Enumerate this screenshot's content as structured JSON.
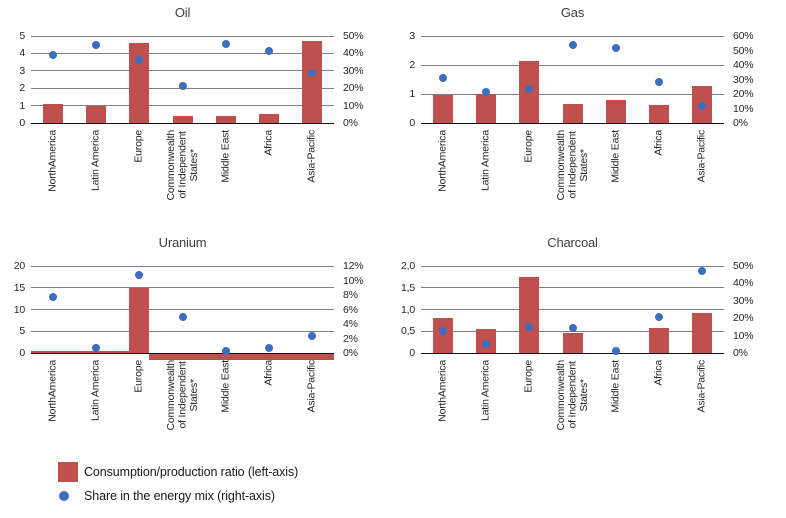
{
  "colors": {
    "bar": "#C0504D",
    "dot": "#3D6EBE",
    "grid": "#7f7f7f",
    "axis": "#141414",
    "text": "#262626"
  },
  "legend": {
    "items": [
      {
        "label": "Consumption/production ratio (left-axis)",
        "marker": "square"
      },
      {
        "label": "Share in the energy mix (right-axis)",
        "marker": "dot"
      }
    ]
  },
  "chart_data": {
    "type": "bar",
    "note": "Four combo charts: red bars = consumption/production ratio on left axis, blue dots = share in energy mix on right axis",
    "categories": [
      "NorthAmerica",
      "Latin America",
      "Europe",
      "Commonwealth\nof Independent\nStates*",
      "Middle East",
      "Africa",
      "Asia-Pacific"
    ],
    "charts": [
      {
        "title": "Oil",
        "left_ticks": [
          "5",
          "4",
          "3",
          "2",
          "1",
          "0"
        ],
        "left_max": 5,
        "right_ticks": [
          "50%",
          "40%",
          "30%",
          "20%",
          "10%",
          "0%"
        ],
        "right_max": 50,
        "bars": [
          1.1,
          1.0,
          4.6,
          0.42,
          0.38,
          0.52,
          4.7
        ],
        "dots_pct": [
          39,
          45,
          36.5,
          21,
          45.5,
          41.5,
          28.5
        ]
      },
      {
        "title": "Gas",
        "left_ticks": [
          "3",
          "2",
          "1",
          "0"
        ],
        "left_max": 3,
        "right_ticks": [
          "60%",
          "50%",
          "40%",
          "30%",
          "20%",
          "10%",
          "0%"
        ],
        "right_max": 60,
        "bars": [
          0.97,
          1.0,
          2.15,
          0.65,
          0.78,
          0.63,
          1.27
        ],
        "dots_pct": [
          31,
          21.5,
          23.5,
          53.5,
          52,
          28.5,
          11.5
        ]
      },
      {
        "title": "Uranium",
        "left_ticks": [
          "20",
          "15",
          "10",
          "5",
          "0"
        ],
        "left_max": 20,
        "right_ticks": [
          "12%",
          "10%",
          "8%",
          "6%",
          "4%",
          "2%",
          "0%"
        ],
        "right_max": 12,
        "bars": [
          0,
          0,
          15,
          0,
          0,
          0,
          0
        ],
        "dots_pct": [
          7.7,
          0.7,
          10.7,
          5,
          0.25,
          0.7,
          2.4
        ],
        "artifacts": {
          "thin_line": {
            "from": 0.0,
            "to": 0.325
          },
          "band": {
            "from": 0.39,
            "to": 1.0,
            "height": 6
          }
        }
      },
      {
        "title": "Charcoal",
        "left_ticks": [
          "2,0",
          "1,5",
          "1,0",
          "0,5",
          "0"
        ],
        "left_max": 2,
        "right_ticks": [
          "50%",
          "40%",
          "30%",
          "20%",
          "10%",
          "0%"
        ],
        "right_max": 50,
        "bars": [
          0.8,
          0.56,
          1.75,
          0.45,
          0,
          0.57,
          0.92
        ],
        "dots_pct": [
          12.5,
          5,
          15,
          14.5,
          1,
          20.5,
          47
        ]
      }
    ]
  }
}
